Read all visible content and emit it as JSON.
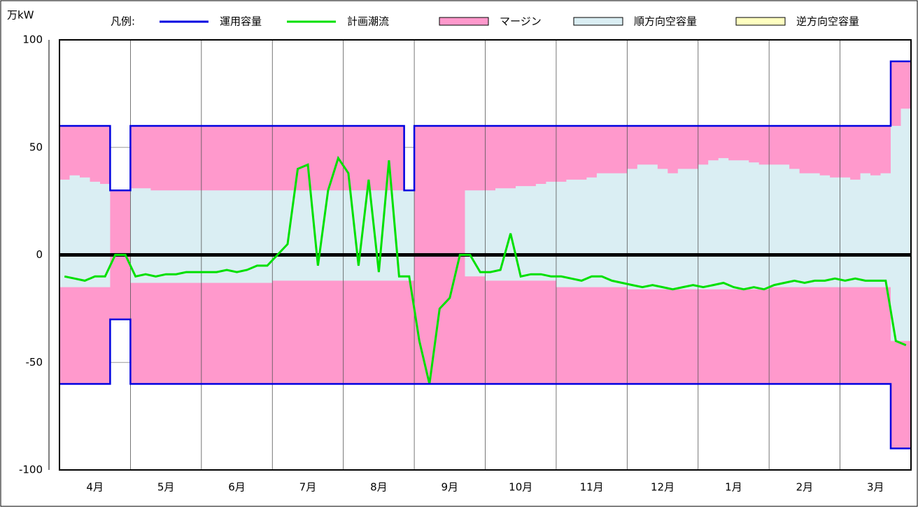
{
  "chart_data": {
    "type": "line",
    "y_label": "万kW",
    "legend_label": "凡例:",
    "categories": [
      null,
      null,
      null,
      "4月",
      null,
      null,
      null,
      null,
      null,
      null,
      "5月",
      null,
      null,
      null,
      null,
      null,
      null,
      "6月",
      null,
      null,
      null,
      null,
      null,
      null,
      "7月",
      null,
      null,
      null,
      null,
      null,
      null,
      "8月",
      null,
      null,
      null,
      null,
      null,
      null,
      "9月",
      null,
      null,
      null,
      null,
      null,
      null,
      "10月",
      null,
      null,
      null,
      null,
      null,
      null,
      "11月",
      null,
      null,
      null,
      null,
      null,
      null,
      "12月",
      null,
      null,
      null,
      null,
      null,
      null,
      "1月",
      null,
      null,
      null,
      null,
      null,
      null,
      "2月",
      null,
      null,
      null,
      null,
      null,
      null,
      "3月",
      null,
      null,
      null
    ],
    "ylim": [
      -100,
      100
    ],
    "yticks": [
      -100,
      -50,
      0,
      50,
      100
    ],
    "grid": true,
    "series": [
      {
        "name": "運用容量",
        "color": "#0000e0",
        "values": [
          60,
          60,
          60,
          60,
          60,
          30,
          30,
          60,
          60,
          60,
          60,
          60,
          60,
          60,
          60,
          60,
          60,
          60,
          60,
          60,
          60,
          60,
          60,
          60,
          60,
          60,
          60,
          60,
          60,
          60,
          60,
          60,
          60,
          60,
          30,
          60,
          60,
          60,
          60,
          60,
          60,
          60,
          60,
          60,
          60,
          60,
          60,
          60,
          60,
          60,
          60,
          60,
          60,
          60,
          60,
          60,
          60,
          60,
          60,
          60,
          60,
          60,
          60,
          60,
          60,
          60,
          60,
          60,
          60,
          60,
          60,
          60,
          60,
          60,
          60,
          60,
          60,
          60,
          60,
          60,
          60,
          60,
          90,
          90
        ],
        "lower": [
          -60,
          -60,
          -60,
          -60,
          -60,
          -30,
          -30,
          -60,
          -60,
          -60,
          -60,
          -60,
          -60,
          -60,
          -60,
          -60,
          -60,
          -60,
          -60,
          -60,
          -60,
          -60,
          -60,
          -60,
          -60,
          -60,
          -60,
          -60,
          -60,
          -60,
          -60,
          -60,
          -60,
          -60,
          -60,
          -60,
          -60,
          -60,
          -60,
          -60,
          -60,
          -60,
          -60,
          -60,
          -60,
          -60,
          -60,
          -60,
          -60,
          -60,
          -60,
          -60,
          -60,
          -60,
          -60,
          -60,
          -60,
          -60,
          -60,
          -60,
          -60,
          -60,
          -60,
          -60,
          -60,
          -60,
          -60,
          -60,
          -60,
          -60,
          -60,
          -60,
          -60,
          -60,
          -60,
          -60,
          -60,
          -60,
          -60,
          -60,
          -60,
          -60,
          -90,
          -90
        ]
      },
      {
        "name": "計画潮流",
        "color": "#00e000",
        "values": [
          -10,
          -11,
          -12,
          -10,
          -10,
          0,
          0,
          -10,
          -9,
          -10,
          -9,
          -9,
          -8,
          -8,
          -8,
          -8,
          -7,
          -8,
          -7,
          -5,
          -5,
          0,
          5,
          40,
          42,
          -5,
          30,
          45,
          38,
          -5,
          35,
          -8,
          44,
          -10,
          -10,
          -40,
          -60,
          -25,
          -20,
          0,
          0,
          -8,
          -8,
          -7,
          10,
          -10,
          -9,
          -9,
          -10,
          -10,
          -11,
          -12,
          -10,
          -10,
          -12,
          -13,
          -14,
          -15,
          -14,
          -15,
          -16,
          -15,
          -14,
          -15,
          -14,
          -13,
          -15,
          -16,
          -15,
          -16,
          -14,
          -13,
          -12,
          -13,
          -12,
          -12,
          -11,
          -12,
          -11,
          -12,
          -12,
          -12,
          -40,
          -42
        ]
      },
      {
        "name": "マージン",
        "color": "#ff99cc"
      },
      {
        "name": "順方向空容量",
        "color": "#daeef3",
        "values": [
          35,
          37,
          36,
          34,
          33,
          0,
          0,
          31,
          31,
          30,
          30,
          30,
          30,
          30,
          30,
          30,
          30,
          30,
          30,
          30,
          30,
          30,
          30,
          30,
          30,
          30,
          30,
          30,
          30,
          30,
          30,
          30,
          30,
          30,
          30,
          0,
          0,
          0,
          0,
          0,
          30,
          30,
          30,
          31,
          31,
          32,
          32,
          33,
          34,
          34,
          35,
          35,
          36,
          38,
          38,
          38,
          40,
          42,
          42,
          40,
          38,
          40,
          40,
          42,
          44,
          45,
          44,
          44,
          43,
          42,
          42,
          42,
          40,
          38,
          38,
          37,
          36,
          36,
          35,
          38,
          37,
          38,
          60,
          68
        ],
        "lower": [
          -15,
          -15,
          -15,
          -15,
          -15,
          0,
          0,
          -13,
          -13,
          -13,
          -13,
          -13,
          -13,
          -13,
          -13,
          -13,
          -13,
          -13,
          -13,
          -13,
          -13,
          -12,
          -12,
          -12,
          -12,
          -12,
          -12,
          -12,
          -12,
          -12,
          -12,
          -12,
          -12,
          -12,
          -12,
          0,
          0,
          0,
          0,
          0,
          -10,
          -10,
          -12,
          -12,
          -12,
          -12,
          -12,
          -12,
          -12,
          -15,
          -15,
          -15,
          -15,
          -15,
          -15,
          -15,
          -16,
          -16,
          -16,
          -16,
          -16,
          -16,
          -16,
          -16,
          -16,
          -16,
          -16,
          -16,
          -16,
          -16,
          -15,
          -15,
          -15,
          -15,
          -15,
          -15,
          -15,
          -15,
          -15,
          -15,
          -15,
          -15,
          -40,
          -40
        ]
      },
      {
        "name": "逆方向空容量",
        "color": "#ffffc0"
      }
    ]
  }
}
